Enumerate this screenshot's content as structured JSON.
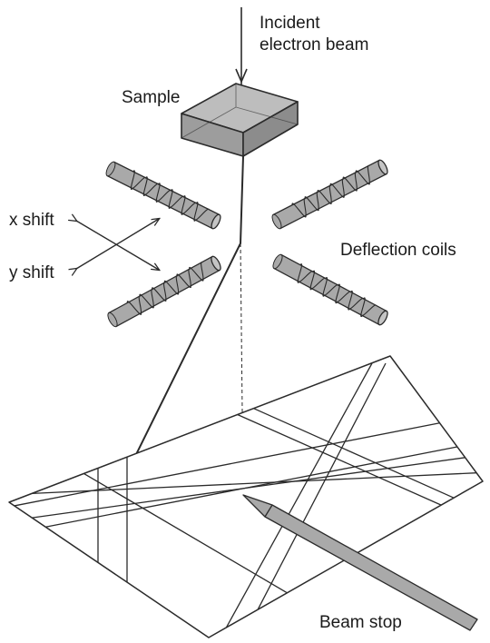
{
  "labels": {
    "incident_line1": "Incident",
    "incident_line2": "electron beam",
    "sample": "Sample",
    "x_shift": "x shift",
    "y_shift": "y shift",
    "deflection_coils": "Deflection coils",
    "beam_stop": "Beam stop"
  },
  "colors": {
    "line": "#2b2b2b",
    "fill": "#a9a9a9",
    "fill_light": "#c4c4c4"
  }
}
